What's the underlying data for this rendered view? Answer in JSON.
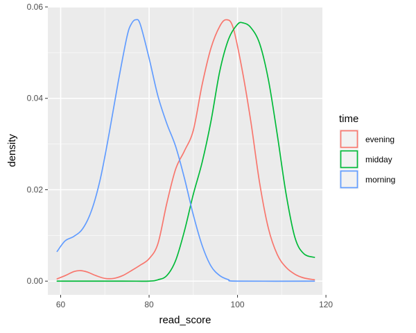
{
  "chart_data": {
    "type": "line",
    "xlabel": "read_score",
    "ylabel": "density",
    "xlim": [
      57.1,
      119.2
    ],
    "ylim": [
      -0.003,
      0.06
    ],
    "x_ticks": [
      60,
      80,
      100,
      120
    ],
    "x_tick_labels": [
      "60",
      "80",
      "100",
      "120"
    ],
    "y_ticks": [
      0,
      0.02,
      0.04,
      0.06
    ],
    "y_tick_labels": [
      "0.00",
      "0.02",
      "0.04",
      "0.06"
    ],
    "grid": true,
    "legend": {
      "title": "time",
      "placement": "right"
    },
    "series": [
      {
        "name": "evening",
        "color": "#F8766D",
        "points": [
          [
            59.2,
            0.0005
          ],
          [
            61,
            0.0012
          ],
          [
            63,
            0.0021
          ],
          [
            64.5,
            0.0023
          ],
          [
            66,
            0.002
          ],
          [
            68,
            0.0012
          ],
          [
            70,
            0.0006
          ],
          [
            72,
            0.0006
          ],
          [
            74,
            0.0012
          ],
          [
            76,
            0.0023
          ],
          [
            78,
            0.0035
          ],
          [
            80,
            0.0049
          ],
          [
            82,
            0.0082
          ],
          [
            84,
            0.017
          ],
          [
            86,
            0.0245
          ],
          [
            88,
            0.0285
          ],
          [
            90,
            0.033
          ],
          [
            92,
            0.043
          ],
          [
            94,
            0.051
          ],
          [
            96,
            0.0558
          ],
          [
            97.5,
            0.0572
          ],
          [
            99,
            0.0555
          ],
          [
            101,
            0.0465
          ],
          [
            103,
            0.035
          ],
          [
            105,
            0.0215
          ],
          [
            107,
            0.0115
          ],
          [
            109,
            0.0058
          ],
          [
            111,
            0.003
          ],
          [
            113,
            0.0015
          ],
          [
            115,
            0.0007
          ],
          [
            117.4,
            0.0003
          ]
        ]
      },
      {
        "name": "midday",
        "color": "#00BA38",
        "points": [
          [
            59.2,
            0
          ],
          [
            74,
            0
          ],
          [
            80,
            0
          ],
          [
            82,
            0.0003
          ],
          [
            84,
            0.0012
          ],
          [
            86,
            0.0045
          ],
          [
            88,
            0.011
          ],
          [
            90,
            0.019
          ],
          [
            92,
            0.026
          ],
          [
            94,
            0.035
          ],
          [
            96,
            0.046
          ],
          [
            98,
            0.053
          ],
          [
            100,
            0.0562
          ],
          [
            101.3,
            0.0565
          ],
          [
            103,
            0.0555
          ],
          [
            105,
            0.052
          ],
          [
            107,
            0.044
          ],
          [
            109,
            0.032
          ],
          [
            111,
            0.019
          ],
          [
            113,
            0.0095
          ],
          [
            115,
            0.006
          ],
          [
            117.4,
            0.0052
          ]
        ]
      },
      {
        "name": "morning",
        "color": "#619CFF",
        "points": [
          [
            59.2,
            0.0065
          ],
          [
            61,
            0.0088
          ],
          [
            63,
            0.0098
          ],
          [
            65,
            0.0115
          ],
          [
            67,
            0.0155
          ],
          [
            69,
            0.0225
          ],
          [
            71,
            0.0325
          ],
          [
            73,
            0.0435
          ],
          [
            75,
            0.0535
          ],
          [
            76,
            0.0563
          ],
          [
            77,
            0.0572
          ],
          [
            78,
            0.0562
          ],
          [
            80,
            0.0488
          ],
          [
            82,
            0.0405
          ],
          [
            84,
            0.0345
          ],
          [
            86,
            0.0295
          ],
          [
            88,
            0.0225
          ],
          [
            90,
            0.0145
          ],
          [
            92,
            0.0078
          ],
          [
            94,
            0.0033
          ],
          [
            96,
            0.0012
          ],
          [
            98,
            0.0003
          ],
          [
            100,
            0
          ],
          [
            117.4,
            0
          ]
        ]
      }
    ]
  }
}
